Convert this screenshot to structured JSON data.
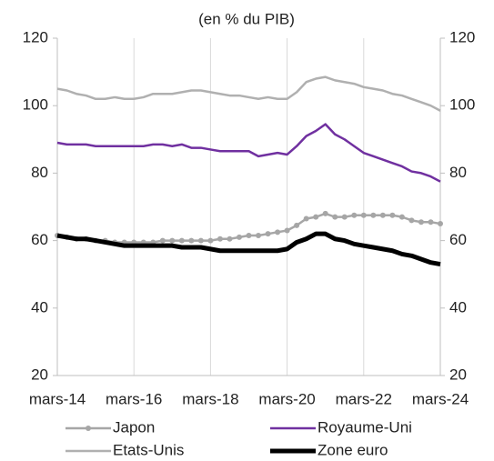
{
  "chart_data": {
    "type": "line",
    "title": "(en % du PIB)",
    "categories": [
      "mars-14",
      null,
      null,
      null,
      null,
      null,
      null,
      null,
      "mars-16",
      null,
      null,
      null,
      null,
      null,
      null,
      null,
      "mars-18",
      null,
      null,
      null,
      null,
      null,
      null,
      null,
      "mars-20",
      null,
      null,
      null,
      null,
      null,
      null,
      null,
      "mars-22",
      null,
      null,
      null,
      null,
      null,
      null,
      null,
      "mars-24"
    ],
    "ylim": [
      20,
      120
    ],
    "yticks": [
      20,
      40,
      60,
      80,
      100,
      120
    ],
    "y2lim": [
      20,
      120
    ],
    "y2ticks": [
      20,
      40,
      60,
      80,
      100,
      120
    ],
    "grid": "x",
    "series": [
      {
        "name": "Japon",
        "color": "#a6a6a6",
        "line_width": 2.5,
        "marker": "circle",
        "values": [
          61.5,
          61,
          60.5,
          60.5,
          60,
          60,
          59.5,
          59.5,
          59.5,
          59.5,
          59.5,
          60,
          60,
          60,
          60,
          60,
          60,
          60.5,
          60.5,
          61,
          61.5,
          61.5,
          62,
          62.5,
          63,
          64.5,
          66.5,
          67,
          68,
          67,
          67,
          67.5,
          67.5,
          67.5,
          67.5,
          67.5,
          67,
          66,
          65.5,
          65.5,
          65
        ]
      },
      {
        "name": "Royaume-Uni",
        "color": "#7030a0",
        "line_width": 2.5,
        "values": [
          89,
          88.5,
          88.5,
          88.5,
          88,
          88,
          88,
          88,
          88,
          88,
          88.5,
          88.5,
          88,
          88.5,
          87.5,
          87.5,
          87,
          86.5,
          86.5,
          86.5,
          86.5,
          85,
          85.5,
          86,
          85.5,
          88,
          91,
          92.5,
          94.5,
          91.5,
          90,
          88,
          86,
          85,
          84,
          83,
          82,
          80.5,
          80,
          79,
          77.5
        ]
      },
      {
        "name": "Etats-Unis",
        "color": "#b0b0b0",
        "line_width": 2.5,
        "values": [
          105,
          104.5,
          103.5,
          103,
          102,
          102,
          102.5,
          102,
          102,
          102.5,
          103.5,
          103.5,
          103.5,
          104,
          104.5,
          104.5,
          104,
          103.5,
          103,
          103,
          102.5,
          102,
          102.5,
          102,
          102,
          104,
          107,
          108,
          108.5,
          107.5,
          107,
          106.5,
          105.5,
          105,
          104.5,
          103.5,
          103,
          102,
          101,
          100,
          98.5
        ]
      },
      {
        "name": "Zone euro",
        "color": "#000000",
        "line_width": 5,
        "values": [
          61.5,
          61,
          60.5,
          60.5,
          60,
          59.5,
          59,
          58.5,
          58.5,
          58.5,
          58.5,
          58.5,
          58.5,
          58,
          58,
          58,
          57.5,
          57,
          57,
          57,
          57,
          57,
          57,
          57,
          57.5,
          59.5,
          60.5,
          62,
          62,
          60.5,
          60,
          59,
          58.5,
          58,
          57.5,
          57,
          56,
          55.5,
          54.5,
          53.5,
          53
        ]
      }
    ]
  }
}
